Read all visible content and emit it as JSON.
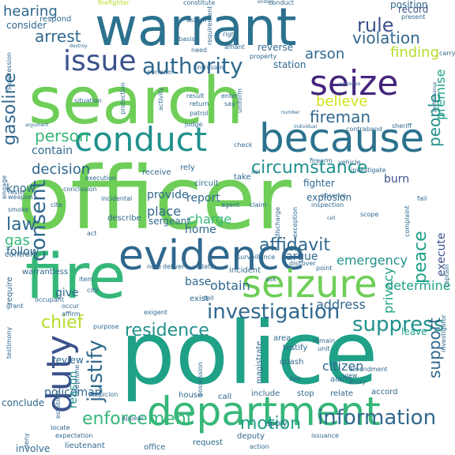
{
  "palette": {
    "deep": "#45257c",
    "purple": "#433e85",
    "indigo": "#3b528b",
    "blue": "#30688e",
    "steel": "#2c728e",
    "teal": "#21918c",
    "sea": "#1fa187",
    "green": "#35b779",
    "lime": "#6ece58",
    "chartreuse": "#95d840",
    "yellow": "#b5de2b",
    "gold": "#d2e21b"
  },
  "words": [
    {
      "text": "search",
      "tone": "lime",
      "rank": 1
    },
    {
      "text": "officer",
      "tone": "lime",
      "rank": 1
    },
    {
      "text": "police",
      "tone": "sea",
      "rank": 1
    },
    {
      "text": "warrant",
      "tone": "steel",
      "rank": 2
    },
    {
      "text": "fire",
      "tone": "green",
      "rank": 2
    },
    {
      "text": "department",
      "tone": "green",
      "rank": 3
    },
    {
      "text": "evidence",
      "tone": "blue",
      "rank": 3
    },
    {
      "text": "seizure",
      "tone": "lime",
      "rank": 3
    },
    {
      "text": "because",
      "tone": "steel",
      "rank": 3
    },
    {
      "text": "conduct",
      "tone": "teal",
      "rank": 4
    },
    {
      "text": "seize",
      "tone": "deep",
      "rank": 4
    },
    {
      "text": "issue",
      "tone": "indigo",
      "rank": 4
    },
    {
      "text": "duty",
      "tone": "indigo",
      "rank": 4
    },
    {
      "text": "authority",
      "tone": "blue",
      "rank": 5
    },
    {
      "text": "investigation",
      "tone": "blue",
      "rank": 5
    },
    {
      "text": "consent",
      "tone": "blue",
      "rank": 5
    },
    {
      "text": "justify",
      "tone": "blue",
      "rank": 5
    },
    {
      "text": "suppress",
      "tone": "teal",
      "rank": 5
    },
    {
      "text": "information",
      "tone": "blue",
      "rank": 5
    },
    {
      "text": "enforcement",
      "tone": "green",
      "rank": 5
    },
    {
      "text": "circumstance",
      "tone": "teal",
      "rank": 5
    },
    {
      "text": "residence",
      "tone": "teal",
      "rank": 5
    },
    {
      "text": "affidavit",
      "tone": "blue",
      "rank": 5
    },
    {
      "text": "motion",
      "tone": "sea",
      "rank": 6
    },
    {
      "text": "rule",
      "tone": "indigo",
      "rank": 6
    },
    {
      "text": "violation",
      "tone": "blue",
      "rank": 6
    },
    {
      "text": "finding",
      "tone": "yellow",
      "rank": 6
    },
    {
      "text": "arrest",
      "tone": "blue",
      "rank": 6
    },
    {
      "text": "person",
      "tone": "green",
      "rank": 6
    },
    {
      "text": "decision",
      "tone": "blue",
      "rank": 6
    },
    {
      "text": "people",
      "tone": "teal",
      "rank": 6
    },
    {
      "text": "peace",
      "tone": "sea",
      "rank": 6
    },
    {
      "text": "support",
      "tone": "blue",
      "rank": 6
    },
    {
      "text": "fireman",
      "tone": "blue",
      "rank": 6
    },
    {
      "text": "believe",
      "tone": "gold",
      "rank": 6
    },
    {
      "text": "gasoline",
      "tone": "blue",
      "rank": 6
    },
    {
      "text": "law",
      "tone": "blue",
      "rank": 6
    },
    {
      "text": "chief",
      "tone": "yellow",
      "rank": 6
    },
    {
      "text": "emergency",
      "tone": "teal",
      "rank": 7
    },
    {
      "text": "address",
      "tone": "blue",
      "rank": 7
    },
    {
      "text": "arson",
      "tone": "blue",
      "rank": 7
    },
    {
      "text": "privacy",
      "tone": "sea",
      "rank": 7
    },
    {
      "text": "premise",
      "tone": "sea",
      "rank": 7
    },
    {
      "text": "hearing",
      "tone": "blue",
      "rank": 7
    },
    {
      "text": "place",
      "tone": "blue",
      "rank": 7
    },
    {
      "text": "charge",
      "tone": "green",
      "rank": 7
    },
    {
      "text": "obtain",
      "tone": "blue",
      "rank": 7
    },
    {
      "text": "determine",
      "tone": "sea",
      "rank": 7
    },
    {
      "text": "policeman",
      "tone": "blue",
      "rank": 7
    },
    {
      "text": "gas",
      "tone": "green",
      "rank": 7
    },
    {
      "text": "burn",
      "tone": "indigo",
      "rank": 7
    },
    {
      "text": "home",
      "tone": "blue",
      "rank": 7
    },
    {
      "text": "citizen",
      "tone": "blue",
      "rank": 7
    },
    {
      "text": "argue",
      "tone": "blue",
      "rank": 7
    },
    {
      "text": "report",
      "tone": "blue",
      "rank": 8
    },
    {
      "text": "provide",
      "tone": "blue",
      "rank": 8
    },
    {
      "text": "leave",
      "tone": "sea",
      "rank": 8
    },
    {
      "text": "execute",
      "tone": "indigo",
      "rank": 8
    },
    {
      "text": "record",
      "tone": "indigo",
      "rank": 8
    },
    {
      "text": "contain",
      "tone": "blue",
      "rank": 8
    },
    {
      "text": "know",
      "tone": "blue",
      "rank": 8
    },
    {
      "text": "follow",
      "tone": "blue",
      "rank": 8
    },
    {
      "text": "review",
      "tone": "blue",
      "rank": 8
    },
    {
      "text": "give",
      "tone": "blue",
      "rank": 8
    },
    {
      "text": "reason",
      "tone": "teal",
      "rank": 8
    },
    {
      "text": "base",
      "tone": "blue",
      "rank": 8
    },
    {
      "text": "conclude",
      "tone": "blue",
      "rank": 8
    },
    {
      "text": "involve",
      "tone": "blue",
      "rank": 8
    },
    {
      "text": "consider",
      "tone": "blue",
      "rank": 8
    },
    {
      "text": "fighter",
      "tone": "blue",
      "rank": 9
    },
    {
      "text": "explosion",
      "tone": "blue",
      "rank": 9
    },
    {
      "text": "station",
      "tone": "blue",
      "rank": 9
    },
    {
      "text": "reverse",
      "tone": "blue",
      "rank": 9
    },
    {
      "text": "position",
      "tone": "blue",
      "rank": 9
    },
    {
      "text": "respond",
      "tone": "blue",
      "rank": 9
    },
    {
      "text": "sergeant",
      "tone": "blue",
      "rank": 9
    },
    {
      "text": "circuit",
      "tone": "blue",
      "rank": 9
    },
    {
      "text": "take",
      "tone": "blue",
      "rank": 9
    },
    {
      "text": "receive",
      "tone": "blue",
      "rank": 9
    },
    {
      "text": "rely",
      "tone": "blue",
      "rank": 9
    },
    {
      "text": "describe",
      "tone": "blue",
      "rank": 9
    },
    {
      "text": "incident",
      "tone": "blue",
      "rank": 9
    },
    {
      "text": "exist",
      "tone": "blue",
      "rank": 9
    },
    {
      "text": "lieutenant",
      "tone": "blue",
      "rank": 9
    },
    {
      "text": "office",
      "tone": "blue",
      "rank": 9
    },
    {
      "text": "request",
      "tone": "blue",
      "rank": 9
    },
    {
      "text": "deputy",
      "tone": "blue",
      "rank": 9
    },
    {
      "text": "apply",
      "tone": "blue",
      "rank": 9
    },
    {
      "text": "stop",
      "tone": "blue",
      "rank": 9
    },
    {
      "text": "alarm",
      "tone": "blue",
      "rank": 9
    },
    {
      "text": "relate",
      "tone": "blue",
      "rank": 9
    },
    {
      "text": "accord",
      "tone": "blue",
      "rank": 9
    },
    {
      "text": "quash",
      "tone": "blue",
      "rank": 9
    },
    {
      "text": "testify",
      "tone": "blue",
      "rank": 9
    },
    {
      "text": "area",
      "tone": "blue",
      "rank": 9
    },
    {
      "text": "magistrate",
      "tone": "blue",
      "rank": 9
    },
    {
      "text": "include",
      "tone": "blue",
      "rank": 9
    },
    {
      "text": "house",
      "tone": "blue",
      "rank": 9
    },
    {
      "text": "call",
      "tone": "blue",
      "rank": 9
    },
    {
      "text": "require",
      "tone": "blue",
      "rank": 9
    },
    {
      "text": "control",
      "tone": "blue",
      "rank": 9
    },
    {
      "text": "warrantless",
      "tone": "blue",
      "rank": 9
    },
    {
      "text": "fireﬁghter",
      "tone": "yellow",
      "rank": 10
    },
    {
      "text": "constitute",
      "tone": "blue",
      "rank": 10
    },
    {
      "text": "basis",
      "tone": "blue",
      "rank": 10
    },
    {
      "text": "need",
      "tone": "blue",
      "rank": 10
    },
    {
      "text": "intrusion",
      "tone": "blue",
      "rank": 10
    },
    {
      "text": "perform",
      "tone": "blue",
      "rank": 10
    },
    {
      "text": "result",
      "tone": "blue",
      "rank": 10
    },
    {
      "text": "return",
      "tone": "blue",
      "rank": 10
    },
    {
      "text": "patrol",
      "tone": "blue",
      "rank": 10
    },
    {
      "text": "judge",
      "tone": "blue",
      "rank": 10
    },
    {
      "text": "enter",
      "tone": "blue",
      "rank": 10
    },
    {
      "text": "say",
      "tone": "blue",
      "rank": 10
    },
    {
      "text": "uniform",
      "tone": "blue",
      "rank": 10
    },
    {
      "text": "situation",
      "tone": "blue",
      "rank": 10
    },
    {
      "text": "activity",
      "tone": "blue",
      "rank": 10
    },
    {
      "text": "protection",
      "tone": "blue",
      "rank": 10
    },
    {
      "text": "property",
      "tone": "blue",
      "rank": 10
    },
    {
      "text": "carry",
      "tone": "blue",
      "rank": 10
    },
    {
      "text": "present",
      "tone": "blue",
      "rank": 10
    },
    {
      "text": "check",
      "tone": "blue",
      "rank": 10
    },
    {
      "text": "sheriff",
      "tone": "blue",
      "rank": 10
    },
    {
      "text": "contraband",
      "tone": "blue",
      "rank": 10
    },
    {
      "text": "firearm",
      "tone": "blue",
      "rank": 10
    },
    {
      "text": "vehicle",
      "tone": "blue",
      "rank": 10
    },
    {
      "text": "investigate",
      "tone": "blue",
      "rank": 10
    },
    {
      "text": "fail",
      "tone": "blue",
      "rank": 10
    },
    {
      "text": "complaint",
      "tone": "blue",
      "rank": 10
    },
    {
      "text": "scope",
      "tone": "blue",
      "rank": 10
    },
    {
      "text": "exception",
      "tone": "blue",
      "rank": 10
    },
    {
      "text": "discharge",
      "tone": "blue",
      "rank": 10
    },
    {
      "text": "claim",
      "tone": "blue",
      "rank": 10
    },
    {
      "text": "agent",
      "tone": "blue",
      "rank": 10
    },
    {
      "text": "surveillance",
      "tone": "blue",
      "rank": 10
    },
    {
      "text": "note",
      "tone": "blue",
      "rank": 10
    },
    {
      "text": "deliver",
      "tone": "blue",
      "rank": 10
    },
    {
      "text": "violate",
      "tone": "blue",
      "rank": 10
    },
    {
      "text": "discover",
      "tone": "blue",
      "rank": 10
    },
    {
      "text": "point",
      "tone": "blue",
      "rank": 10
    },
    {
      "text": "ask",
      "tone": "blue",
      "rank": 10
    },
    {
      "text": "purpose",
      "tone": "blue",
      "rank": 10
    },
    {
      "text": "tell",
      "tone": "blue",
      "rank": 10
    },
    {
      "text": "remain",
      "tone": "blue",
      "rank": 10
    },
    {
      "text": "unit",
      "tone": "blue",
      "rank": 10
    },
    {
      "text": "day",
      "tone": "blue",
      "rank": 10
    },
    {
      "text": "view",
      "tone": "blue",
      "rank": 10
    },
    {
      "text": "amendment",
      "tone": "blue",
      "rank": 10
    },
    {
      "text": "entry",
      "tone": "blue",
      "rank": 10
    },
    {
      "text": "issuance",
      "tone": "blue",
      "rank": 10
    },
    {
      "text": "action",
      "tone": "blue",
      "rank": 10
    },
    {
      "text": "appear",
      "tone": "blue",
      "rank": 10
    },
    {
      "text": "locate",
      "tone": "blue",
      "rank": 10
    },
    {
      "text": "suspicion",
      "tone": "blue",
      "rank": 10
    },
    {
      "text": "telephone",
      "tone": "blue",
      "rank": 10
    },
    {
      "text": "establish",
      "tone": "blue",
      "rank": 10
    },
    {
      "text": "expectation",
      "tone": "blue",
      "rank": 10
    },
    {
      "text": "deny",
      "tone": "blue",
      "rank": 10
    },
    {
      "text": "testimony",
      "tone": "blue",
      "rank": 10
    },
    {
      "text": "grant",
      "tone": "blue",
      "rank": 10
    },
    {
      "text": "occupant",
      "tone": "blue",
      "rank": 10
    },
    {
      "text": "occur",
      "tone": "blue",
      "rank": 10
    },
    {
      "text": "affirm",
      "tone": "blue",
      "rank": 10
    },
    {
      "text": "exigent",
      "tone": "blue",
      "rank": 10
    },
    {
      "text": "item",
      "tone": "blue",
      "rank": 10
    },
    {
      "text": "city",
      "tone": "blue",
      "rank": 10
    },
    {
      "text": "execution",
      "tone": "blue",
      "rank": 10
    },
    {
      "text": "conclusion",
      "tone": "blue",
      "rank": 10
    },
    {
      "text": "incidental",
      "tone": "blue",
      "rank": 10
    },
    {
      "text": "weapon",
      "tone": "blue",
      "rank": 10
    },
    {
      "text": "resist",
      "tone": "blue",
      "rank": 10
    },
    {
      "text": "engage",
      "tone": "blue",
      "rank": 10
    },
    {
      "text": "smoke",
      "tone": "blue",
      "rank": 10
    },
    {
      "text": "cite",
      "tone": "blue",
      "rank": 10
    },
    {
      "text": "act",
      "tone": "blue",
      "rank": 10
    },
    {
      "text": "suppression",
      "tone": "blue",
      "rank": 10
    },
    {
      "text": "argument",
      "tone": "blue",
      "rank": 10
    },
    {
      "text": "performance",
      "tone": "blue",
      "rank": 10
    },
    {
      "text": "authorize",
      "tone": "blue",
      "rank": 10
    },
    {
      "text": "individual",
      "tone": "blue",
      "rank": 10
    },
    {
      "text": "number",
      "tone": "blue",
      "rank": 10
    },
    {
      "text": "right",
      "tone": "blue",
      "rank": 10
    },
    {
      "text": "affiant",
      "tone": "blue",
      "rank": 10
    },
    {
      "text": "requirement",
      "tone": "blue",
      "rank": 10
    },
    {
      "text": "assign",
      "tone": "blue",
      "rank": 10
    },
    {
      "text": "conduct",
      "tone": "blue",
      "rank": 10
    },
    {
      "text": "sel",
      "tone": "blue",
      "rank": 10
    },
    {
      "text": "inspection",
      "tone": "blue",
      "rank": 10
    },
    {
      "text": "observe",
      "tone": "blue",
      "rank": 10
    },
    {
      "text": "captain",
      "tone": "blue",
      "rank": 10
    },
    {
      "text": "investigator",
      "tone": "blue",
      "rank": 10
    },
    {
      "text": "possession",
      "tone": "blue",
      "rank": 10
    },
    {
      "text": "ending",
      "tone": "blue",
      "rank": 10
    },
    {
      "text": "destroy",
      "tone": "blue",
      "rank": 10
    },
    {
      "text": "cell",
      "tone": "blue",
      "rank": 10
    }
  ]
}
